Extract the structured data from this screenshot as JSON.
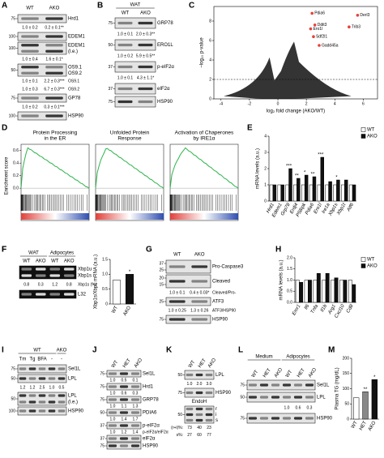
{
  "panel_a": {
    "letter": "A",
    "lanes": [
      "WT",
      "AKO"
    ],
    "items": [
      {
        "labels": [
          "Hrd1"
        ],
        "markers": [
          "75"
        ]
      },
      {
        "quant": [
          "1.0 ± 0.2",
          "0.2 ± 0.1**"
        ]
      },
      {
        "labels": [
          "EDEM1"
        ],
        "markers": [
          "100"
        ]
      },
      {
        "labels": [
          "EDEM1",
          "(l.e.)"
        ],
        "markers": [
          "100"
        ]
      },
      {
        "quant": [
          "1.0 ± 0.4",
          "1.6 ± 0.1*"
        ]
      },
      {
        "labels": [
          "OS9.1",
          "OS9.2"
        ],
        "markers": [
          "50"
        ]
      },
      {
        "quant": [
          "1.0 ± 0.1",
          "2.2 ± 0.3***"
        ],
        "label": "OS9.1"
      },
      {
        "quant": [
          "1.0 ± 0.3",
          "6.7 ± 0.3***"
        ],
        "label": "OS9.2"
      },
      {
        "labels": [
          "GP78"
        ],
        "markers": [
          "75"
        ]
      },
      {
        "quant": [
          "1.0 ± 0.2",
          "0.3 ± 0.1***"
        ]
      },
      {
        "labels": [
          "HSP90"
        ],
        "markers": [
          "100"
        ]
      }
    ]
  },
  "panel_b": {
    "letter": "B",
    "groups": [
      "WAT"
    ],
    "lanes": [
      "WT",
      "AKO"
    ],
    "items": [
      {
        "labels": [
          "GRP78"
        ],
        "markers": [
          "75"
        ]
      },
      {
        "quant": [
          "1.0 ± 0.1",
          "2.0 ± 0.3**"
        ]
      },
      {
        "labels": [
          "ERO1L"
        ],
        "markers": [
          "50"
        ]
      },
      {
        "quant": [
          "1.0 ± 0.2",
          "5.9 ± 0.5**"
        ]
      },
      {
        "labels": [
          "p-eIF2α"
        ],
        "markers": [
          "37"
        ]
      },
      {
        "quant": [
          "1.0 ± 0.1",
          "4.3 ± 1.1*"
        ]
      },
      {
        "labels": [
          "eIF2α"
        ],
        "markers": [
          "37"
        ]
      },
      {
        "labels": [
          "HSP90"
        ],
        "markers": [
          "75"
        ]
      }
    ]
  },
  "panel_c": {
    "letter": "C",
    "type": "scatter",
    "x_label": "log₂ fold change (AKO/WT)",
    "y_label": "−log₁₀ p-value",
    "xlim": [
      -4.5,
      7
    ],
    "ylim": [
      0,
      9.5
    ],
    "xticks": [
      -4,
      -2,
      0,
      2,
      4,
      6
    ],
    "yticks": [
      0,
      2,
      4,
      6,
      8
    ],
    "threshold": 2,
    "highlight_color": "#e8403a",
    "highlighted": {
      "names": [
        "Pdia6",
        "Derl3",
        "Ddit3",
        "Trib3",
        "Ero1l",
        "Sdf2l1",
        "Gadd45a"
      ],
      "x": [
        2.4,
        5.6,
        2.6,
        5.0,
        2.3,
        2.5,
        2.9
      ],
      "y": [
        8.8,
        8.6,
        7.6,
        7.4,
        7.2,
        6.4,
        5.5
      ]
    }
  },
  "panel_d": {
    "letter": "D",
    "y_label": "Enrichment score",
    "ylim": [
      -0.05,
      0.7
    ],
    "yticks": [
      {
        "value": 0,
        "label": "0.0"
      },
      0.2,
      0.4,
      0.6
    ],
    "color": "#2db34a",
    "plots": [
      {
        "title": [
          "Protein Processing",
          "in the ER"
        ]
      },
      {
        "title": [
          "Unfolded Protein",
          "Response"
        ]
      },
      {
        "title": [
          "Activation of Chaperones",
          "by IRE1α"
        ]
      }
    ]
  },
  "panel_e": {
    "letter": "E",
    "type": "bar",
    "y_label": "mRNA levels (a.u.)",
    "categories": [
      "Hrd1",
      "Edem1",
      "Grp78",
      "Erdj4",
      "P58ipk",
      "Pdia6",
      "Ero1l",
      "Ire1a",
      "Xbp1s",
      "Xbp1t",
      "Atf6"
    ],
    "series": [
      {
        "name": "WT",
        "color": "#ffffff",
        "values": [
          1,
          1,
          1,
          1,
          1,
          1,
          1,
          1,
          1,
          1,
          1
        ]
      },
      {
        "name": "AKO",
        "color": "#111111",
        "values": [
          1.0,
          1.0,
          2.0,
          1.4,
          1.6,
          1.5,
          2.7,
          1.2,
          1.3,
          1.3,
          1.0
        ]
      }
    ],
    "annotations": [
      null,
      null,
      "***",
      "**",
      "*",
      "**",
      "***",
      null,
      "*",
      null,
      null
    ],
    "ylim": [
      0,
      4
    ],
    "yticks": [
      0,
      1,
      2,
      3,
      4
    ]
  },
  "panel_f": {
    "letter": "F",
    "groups": [
      "WAT",
      "Adipocytes"
    ],
    "lanes": [
      "WT",
      "AKO",
      "WT",
      "AKO"
    ],
    "items": [
      {
        "labels": [
          "Xbp1u",
          "Xbp1s"
        ]
      },
      {
        "quant": [
          "0.8",
          "0.3",
          "1.2",
          "0.8"
        ],
        "label": "Xbp1s (%)"
      },
      {
        "labels": [
          "L32"
        ]
      }
    ],
    "chart": {
      "type": "bar",
      "y_label": "Xbp1s/Xbp1 mRNA (a.u.)",
      "categories": [
        "WT",
        "AKO"
      ],
      "values": [
        0.8,
        1.0
      ],
      "colors": [
        "#ffffff",
        "#111111"
      ],
      "annotations": [
        null,
        "*"
      ],
      "ylim": [
        0,
        1.5
      ],
      "yticks": [
        0,
        0.5,
        {
          "value": 1,
          "label": "1.0"
        },
        1.5
      ]
    }
  },
  "panel_g": {
    "letter": "G",
    "lanes": [
      "WT",
      "AKO"
    ],
    "items": [
      {
        "labels": [
          "Pro-Caspase3"
        ],
        "markers": [
          "37",
          "25"
        ]
      },
      {
        "labels": [
          "Cleaved"
        ],
        "markers": [
          "20",
          "15"
        ]
      },
      {
        "quant": [
          "1.0 ± 0.1",
          "0.4 ± 0.03*"
        ],
        "label": "Cleaved/Pro-"
      },
      {
        "labels": [
          "ATF3"
        ],
        "markers": [
          "25"
        ]
      },
      {
        "quant": [
          "1.0 ± 0.25",
          "1.3 ± 0.26"
        ],
        "label": "ATF3/HSP90"
      },
      {
        "labels": [
          "HSP90"
        ],
        "markers": [
          "75"
        ]
      }
    ]
  },
  "panel_h": {
    "letter": "H",
    "type": "bar",
    "y_label": "mRNA levels (a.u.)",
    "categories": [
      "Emr1",
      "Il6",
      "Tnfa",
      "Il1b",
      "Arg1",
      "Cxcl10",
      "Cd8"
    ],
    "series": [
      {
        "name": "WT",
        "color": "#ffffff",
        "values": [
          1,
          1,
          1,
          1,
          1,
          1,
          1
        ]
      },
      {
        "name": "AKO",
        "color": "#111111",
        "values": [
          0.9,
          1.0,
          1.3,
          1.3,
          1.1,
          1.0,
          0.8
        ]
      }
    ],
    "ylim": [
      0,
      2
    ],
    "yticks": [
      {
        "value": 0,
        "label": "0.0"
      },
      0.5,
      {
        "value": 1,
        "label": "1.0"
      },
      1.5,
      {
        "value": 2,
        "label": "2.0"
      }
    ]
  },
  "panel_i": {
    "letter": "I",
    "groups": [
      "WT",
      "AKO"
    ],
    "lanes": [
      "Tm",
      "Tg",
      "BFA",
      "-",
      "-"
    ],
    "items": [
      {
        "labels": [
          "Sel1L"
        ],
        "markers": [
          "75"
        ]
      },
      {
        "labels": [
          "LPL"
        ],
        "markers": [
          "50"
        ]
      },
      {
        "quant": [
          "1.2",
          "1.2",
          "2.5",
          "1.0",
          "0.5"
        ]
      },
      {
        "labels": [
          "LPL",
          "(l.e.)"
        ],
        "markers": [
          "50"
        ]
      },
      {
        "labels": [
          "HSP90"
        ],
        "markers": [
          "100"
        ]
      }
    ]
  },
  "panel_j": {
    "letter": "J",
    "lanes": [
      "WT",
      "HET",
      "AKO"
    ],
    "items": [
      {
        "labels": [
          "Sel1L"
        ],
        "markers": [
          "75"
        ]
      },
      {
        "quant": [
          "1.0",
          "0.5",
          "0.1"
        ]
      },
      {
        "labels": [
          "Hrd1"
        ],
        "markers": [
          "75"
        ]
      },
      {
        "quant": [
          "1.0",
          "0.6",
          "0.3"
        ]
      },
      {
        "labels": [
          "GRP78"
        ],
        "markers": [
          "75"
        ]
      },
      {
        "quant": [
          "1.0",
          "1.1",
          "1.3"
        ]
      },
      {
        "labels": [
          "PDIA6"
        ],
        "markers": [
          "50"
        ]
      },
      {
        "quant": [
          "1.0",
          "1.4",
          "1.7"
        ]
      },
      {
        "labels": [
          "p-eIF2α"
        ],
        "markers": [
          "37"
        ]
      },
      {
        "quant": [
          "1.0",
          "1.2",
          "1.4"
        ],
        "label": "p-eIF2α/eIF2α"
      },
      {
        "labels": [
          "eIF2α"
        ],
        "markers": [
          "37"
        ]
      },
      {
        "labels": [
          "HSP90"
        ],
        "markers": [
          "75"
        ]
      }
    ]
  },
  "panel_k": {
    "letter": "K",
    "lanes": [
      "WT",
      "HET",
      "AKO"
    ],
    "items": [
      {
        "labels": [
          "LPL"
        ],
        "markers": [
          "50"
        ]
      },
      {
        "quant": [
          "1.0",
          "2.0",
          "3.0"
        ]
      },
      {
        "labels": [
          "HSP90"
        ],
        "markers": [
          "75"
        ]
      },
      {
        "text": "EndoH"
      },
      {
        "labels": [
          "r",
          "i",
          "s"
        ],
        "markers": [
          "50"
        ]
      },
      {
        "prefix": "(r+i)%:",
        "quant": [
          "73",
          "40",
          "23"
        ]
      },
      {
        "prefix": "s%:",
        "quant": [
          "27",
          "60",
          "77"
        ]
      }
    ]
  },
  "panel_l": {
    "letter": "L",
    "groups": [
      "Medium",
      "Adipocytes"
    ],
    "lanes": [
      "WT",
      "HET",
      "AKO",
      "WT",
      "HET",
      "AKO"
    ],
    "items": [
      {
        "labels": [
          "Sel1L"
        ],
        "markers": [
          "75"
        ]
      },
      {
        "labels": [
          "LPL"
        ],
        "markers": [
          "50"
        ]
      },
      {
        "quant": [
          "1.0",
          "0.6",
          "0.3"
        ]
      },
      {
        "labels": [
          "HSP90"
        ],
        "markers": [
          "75"
        ]
      }
    ]
  },
  "panel_m": {
    "letter": "M",
    "type": "bar",
    "y_label": "Plasma TG (mg/dL)",
    "categories": [
      "WT",
      "HET",
      "AKO"
    ],
    "values": [
      70,
      90,
      130
    ],
    "colors": [
      "#ffffff",
      "#888888",
      "#111111"
    ],
    "annotations": [
      null,
      "**",
      "*"
    ],
    "ylim": [
      0,
      200
    ],
    "yticks": [
      0,
      50,
      100,
      150,
      200
    ]
  }
}
